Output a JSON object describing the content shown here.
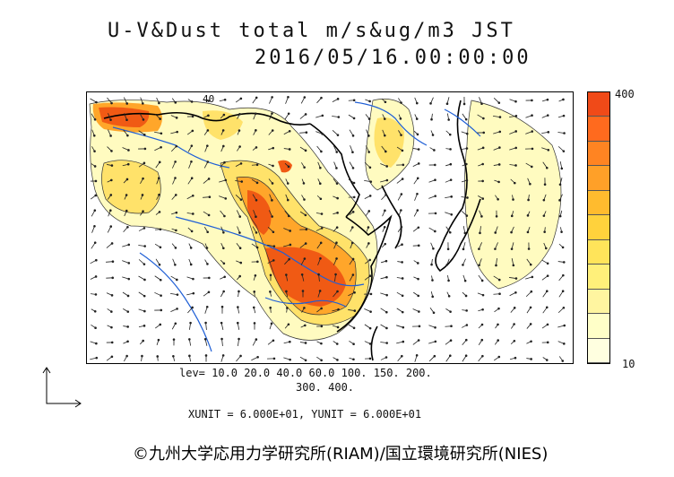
{
  "title": {
    "line1": "U-V&Dust total m/s&ug/m3 JST",
    "line2": "2016/05/16.00:00:00"
  },
  "colorbar": {
    "max_label": "400",
    "min_label": "10",
    "colors": [
      "#ffffe0",
      "#ffffc8",
      "#fff5a0",
      "#fff07a",
      "#ffe45a",
      "#ffd23c",
      "#ffbb2e",
      "#ffa028",
      "#ff8422",
      "#ff6a1e",
      "#f04a18"
    ]
  },
  "contour_label": "40",
  "levels": {
    "line1": "lev= 10.0 20.0 40.0 60.0 100. 150. 200.",
    "line2": "300. 400."
  },
  "units": "XUNIT = 6.000E+01, YUNIT = 6.000E+01",
  "credit": "©九州大学応用力学研究所(RIAM)/国立環境研究所(NIES)",
  "map_colors": {
    "coast": "#000000",
    "rivers": "#1f5fd6",
    "light": "#fffbc0",
    "mid": "#ffe26a",
    "high": "#ffa62a",
    "peak": "#f05a14"
  }
}
